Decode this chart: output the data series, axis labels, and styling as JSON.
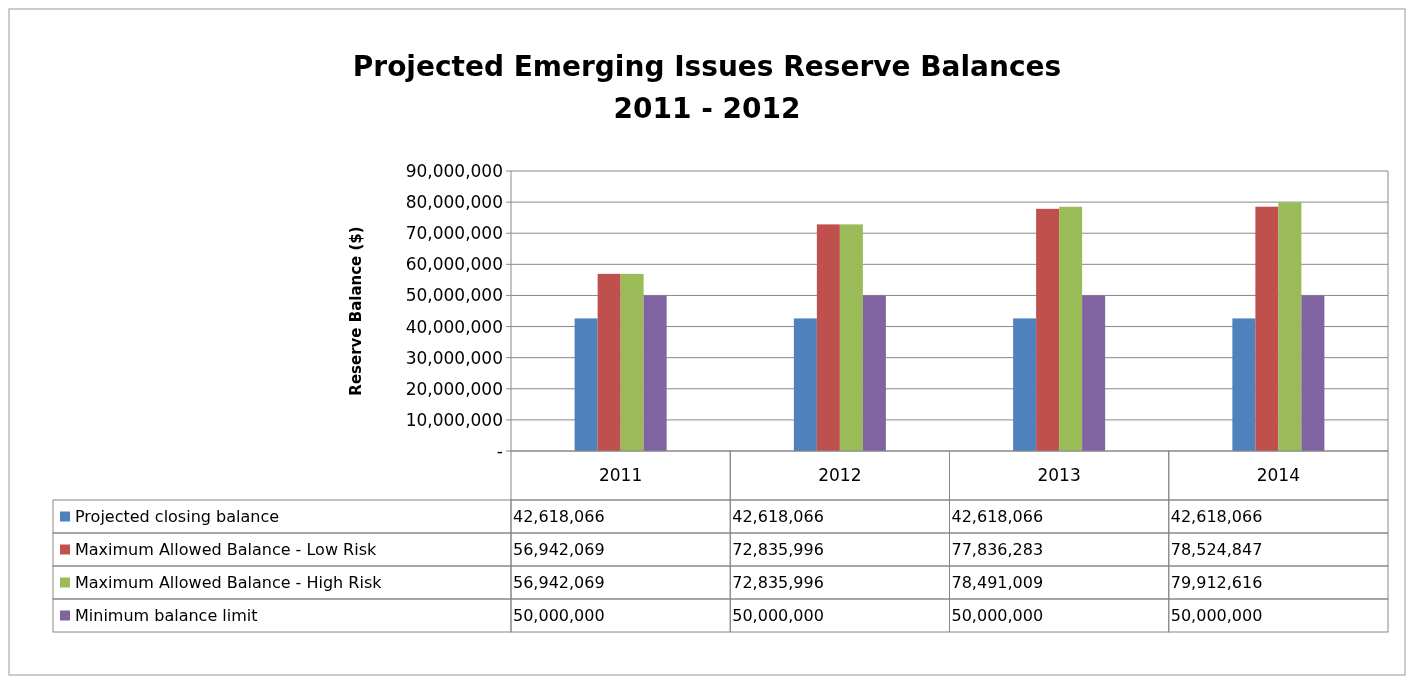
{
  "chart_data": {
    "type": "bar",
    "title": "Projected Emerging Issues Reserve Balances\n2011 - 2012",
    "ylabel": "Reserve Balance ($)",
    "categories": [
      "2011",
      "2012",
      "2013",
      "2014"
    ],
    "series": [
      {
        "name": "Projected closing balance",
        "color": "#4f81bd",
        "values": [
          42618066,
          42618066,
          42618066,
          42618066
        ],
        "value_labels": [
          "42,618,066",
          "42,618,066",
          "42,618,066",
          "42,618,066"
        ]
      },
      {
        "name": "Maximum Allowed Balance - Low Risk",
        "color": "#c0504d",
        "values": [
          56942069,
          72835996,
          77836283,
          78524847
        ],
        "value_labels": [
          "56,942,069",
          "72,835,996",
          "77,836,283",
          "78,524,847"
        ]
      },
      {
        "name": "Maximum Allowed Balance - High Risk",
        "color": "#9bbb59",
        "values": [
          56942069,
          72835996,
          78491009,
          79912616
        ],
        "value_labels": [
          "56,942,069",
          "72,835,996",
          "78,491,009",
          "79,912,616"
        ]
      },
      {
        "name": "Minimum balance limit",
        "color": "#8064a2",
        "values": [
          50000000,
          50000000,
          50000000,
          50000000
        ],
        "value_labels": [
          "50,000,000",
          "50,000,000",
          "50,000,000",
          "50,000,000"
        ]
      }
    ],
    "ylim": [
      0,
      90000000
    ],
    "yticks": [
      {
        "value": 0,
        "label": "-"
      },
      {
        "value": 10000000,
        "label": "10,000,000"
      },
      {
        "value": 20000000,
        "label": "20,000,000"
      },
      {
        "value": 30000000,
        "label": "30,000,000"
      },
      {
        "value": 40000000,
        "label": "40,000,000"
      },
      {
        "value": 50000000,
        "label": "50,000,000"
      },
      {
        "value": 60000000,
        "label": "60,000,000"
      },
      {
        "value": 70000000,
        "label": "70,000,000"
      },
      {
        "value": 80000000,
        "label": "80,000,000"
      },
      {
        "value": 90000000,
        "label": "90,000,000"
      }
    ],
    "grid": "y",
    "legend": "bottom"
  }
}
